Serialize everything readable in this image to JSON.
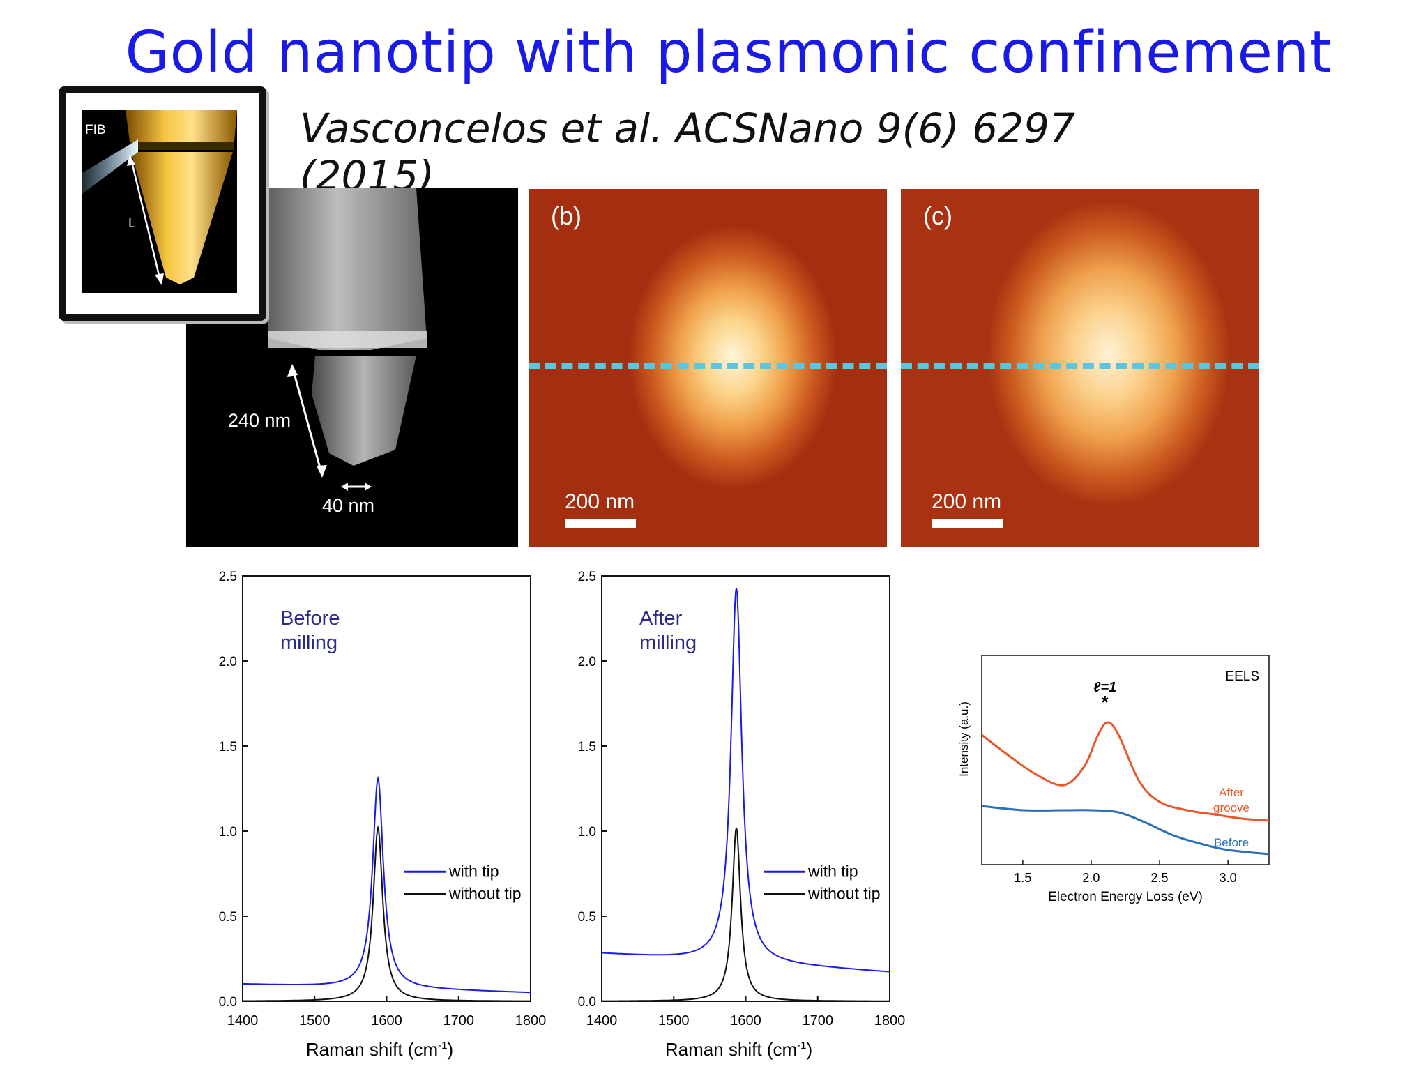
{
  "slide": {
    "title": "Gold nanotip with plasmonic confinement",
    "citation": "Vasconcelos et al. ACSNano 9(6) 6297 (2015)"
  },
  "inset": {
    "fib_label": "FIB",
    "length_label": "L"
  },
  "sem": {
    "height_label": "240 nm",
    "tip_label": "40 nm"
  },
  "maps": [
    {
      "panel": "(b)",
      "scale": "200 nm"
    },
    {
      "panel": "(c)",
      "scale": "200 nm"
    }
  ],
  "colors": {
    "title": "#1a1ae6",
    "with_tip": "#1a1ae6",
    "without_tip": "#111111",
    "after_groove": "#e8582a",
    "before": "#2a6fb8",
    "dashed_line": "#5cc6e0"
  },
  "chart_data": [
    {
      "type": "line",
      "annotation_line1": "Before",
      "annotation_line2": "milling",
      "xlabel": "Raman shift (cm",
      "xlabel_sup": "-1",
      "xlabel_close": ")",
      "xlim": [
        1400,
        1800
      ],
      "ylim": [
        0,
        2.5
      ],
      "x_ticks": [
        "1400",
        "1500",
        "1600",
        "1700",
        "1800"
      ],
      "y_ticks": [
        "0.0",
        "0.5",
        "1.0",
        "1.5",
        "2.0",
        "2.5"
      ],
      "legend": "right",
      "series": [
        {
          "name": "with tip",
          "baseline": 0.1,
          "baseline_end": 0.05,
          "peak_x": 1588,
          "peak_y": 1.31,
          "width": 9
        },
        {
          "name": "without tip",
          "baseline": 0.0,
          "baseline_end": 0.0,
          "peak_x": 1588,
          "peak_y": 1.02,
          "width": 8
        }
      ]
    },
    {
      "type": "line",
      "annotation_line1": "After",
      "annotation_line2": "milling",
      "xlabel": "Raman shift (cm",
      "xlabel_sup": "-1",
      "xlabel_close": ")",
      "xlim": [
        1400,
        1800
      ],
      "ylim": [
        0,
        2.5
      ],
      "x_ticks": [
        "1400",
        "1500",
        "1600",
        "1700",
        "1800"
      ],
      "y_ticks": [
        "0.0",
        "0.5",
        "1.0",
        "1.5",
        "2.0",
        "2.5"
      ],
      "legend": "right",
      "series": [
        {
          "name": "with tip",
          "baseline": 0.28,
          "baseline_end": 0.17,
          "peak_x": 1587,
          "peak_y": 2.43,
          "width": 9
        },
        {
          "name": "without tip",
          "baseline": 0.0,
          "baseline_end": 0.0,
          "peak_x": 1587,
          "peak_y": 1.02,
          "width": 7
        }
      ]
    },
    {
      "type": "line",
      "title": "EELS",
      "xlabel": "Electron Energy Loss (eV)",
      "ylabel": "Intensity (a.u.)",
      "xlim": [
        1.2,
        3.3
      ],
      "x_ticks": [
        "1.5",
        "2.0",
        "2.5",
        "3.0"
      ],
      "peak_label": "ℓ=1",
      "peak_marker": "*",
      "series": [
        {
          "name": "After groove",
          "name_line1": "After",
          "name_line2": "groove",
          "x": [
            1.2,
            1.4,
            1.6,
            1.8,
            1.95,
            2.05,
            2.12,
            2.2,
            2.35,
            2.5,
            2.7,
            2.9,
            3.1,
            3.3
          ],
          "y": [
            0.62,
            0.52,
            0.43,
            0.38,
            0.47,
            0.62,
            0.68,
            0.62,
            0.4,
            0.3,
            0.26,
            0.24,
            0.22,
            0.21
          ]
        },
        {
          "name": "Before",
          "x": [
            1.2,
            1.5,
            1.8,
            2.0,
            2.2,
            2.4,
            2.6,
            2.8,
            3.0,
            3.3
          ],
          "y": [
            0.28,
            0.26,
            0.26,
            0.26,
            0.25,
            0.2,
            0.14,
            0.1,
            0.07,
            0.05
          ]
        }
      ]
    }
  ]
}
